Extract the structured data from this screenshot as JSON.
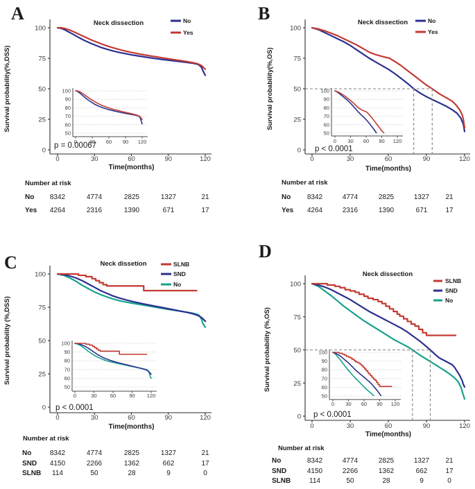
{
  "chart_data": [
    {
      "panel": "A",
      "type": "line",
      "title": "Neck dissection",
      "ylabel": "Survival probability(%,DSS)",
      "xlabel": "Time(months)",
      "p_value": "p = 0.00067",
      "xlim": [
        0,
        120
      ],
      "ylim": [
        0,
        100
      ],
      "xticks": [
        0,
        30,
        60,
        90,
        120
      ],
      "yticks": [
        0,
        25,
        50,
        75,
        100
      ],
      "legend_position": "top-right",
      "legend": [
        {
          "label": "No",
          "color": "#2b2f90"
        },
        {
          "label": "Yes",
          "color": "#c23a33"
        }
      ],
      "series": [
        {
          "name": "No",
          "color": "#2b2f90",
          "x": [
            0,
            3,
            6,
            9,
            12,
            15,
            18,
            21,
            24,
            27,
            30,
            35,
            40,
            45,
            50,
            55,
            60,
            65,
            70,
            75,
            80,
            85,
            90,
            95,
            100,
            105,
            110,
            113,
            115,
            117,
            118,
            120
          ],
          "y": [
            100,
            99.5,
            98.2,
            96.6,
            95,
            93.3,
            91.6,
            90,
            88.6,
            87.2,
            86,
            84,
            82.4,
            81,
            79.8,
            78.8,
            77.8,
            77,
            76.2,
            75.4,
            74.7,
            74,
            73.4,
            72.8,
            72.2,
            71.6,
            70.9,
            70.3,
            69.5,
            67.5,
            65,
            61
          ]
        },
        {
          "name": "Yes",
          "color": "#c23a33",
          "x": [
            0,
            3,
            6,
            9,
            12,
            15,
            18,
            21,
            24,
            27,
            30,
            35,
            40,
            45,
            50,
            55,
            60,
            65,
            70,
            75,
            80,
            85,
            90,
            95,
            100,
            105,
            110,
            113,
            115,
            117,
            118,
            120
          ],
          "y": [
            100,
            100,
            99.4,
            98.4,
            97.2,
            95.8,
            94.4,
            93,
            91.6,
            90.2,
            89,
            87,
            85.2,
            83.6,
            82.2,
            80.9,
            79.8,
            78.8,
            77.9,
            77,
            76.2,
            75.4,
            74.6,
            73.8,
            73.1,
            72.3,
            71.4,
            70.7,
            70,
            69,
            68,
            66
          ]
        }
      ],
      "inset": {
        "ylim": [
          50,
          100
        ],
        "yticks": [
          100,
          90,
          80,
          70,
          60,
          50
        ],
        "xticks": [
          0,
          30,
          60,
          90,
          120
        ],
        "grid": true
      },
      "risk_table": {
        "title": "Number at risk",
        "time_points": [
          0,
          30,
          60,
          90,
          120
        ],
        "rows": [
          {
            "label": "No",
            "values": [
              8342,
              4774,
              2825,
              1327,
              21
            ]
          },
          {
            "label": "Yes",
            "values": [
              4264,
              2316,
              1390,
              671,
              17
            ]
          }
        ]
      }
    },
    {
      "panel": "B",
      "type": "line",
      "title": "Neck dissection",
      "ylabel": "Survival probability(%,OS)",
      "xlabel": "Time(months)",
      "p_value": "p < 0.0001",
      "xlim": [
        0,
        120
      ],
      "ylim": [
        0,
        100
      ],
      "xticks": [
        0,
        30,
        60,
        90,
        120
      ],
      "yticks": [
        0,
        25,
        50,
        75,
        100
      ],
      "legend_position": "top-right",
      "median_guides": {
        "y": 50,
        "x": [
          80,
          94.5
        ]
      },
      "legend": [
        {
          "label": "No",
          "color": "#2b2f90"
        },
        {
          "label": "Yes",
          "color": "#c23a33"
        }
      ],
      "series": [
        {
          "name": "No",
          "color": "#2b2f90",
          "x": [
            0,
            5,
            10,
            15,
            20,
            25,
            30,
            35,
            40,
            45,
            50,
            55,
            60,
            65,
            70,
            75,
            80,
            85,
            90,
            95,
            100,
            105,
            110,
            114,
            117,
            119,
            120
          ],
          "y": [
            100,
            98.5,
            96,
            93.5,
            91,
            88.5,
            85.5,
            82,
            78.5,
            75,
            72,
            69,
            66,
            62.5,
            58.5,
            54.5,
            50,
            46.5,
            43.5,
            41,
            38.5,
            36,
            33,
            30,
            26,
            21,
            15
          ]
        },
        {
          "name": "Yes",
          "color": "#c23a33",
          "x": [
            0,
            5,
            10,
            15,
            20,
            25,
            30,
            35,
            40,
            45,
            50,
            55,
            61,
            65,
            70,
            75,
            80,
            85,
            90,
            94.5,
            100,
            105,
            110,
            113,
            116,
            118,
            119,
            120
          ],
          "y": [
            100,
            99,
            97.5,
            95.5,
            93.5,
            91,
            88.5,
            86,
            83,
            80,
            78,
            76.5,
            75,
            72.5,
            69,
            65,
            61,
            57,
            53,
            50,
            46,
            43,
            40,
            37,
            33,
            29,
            25,
            18
          ]
        }
      ],
      "inset": {
        "ylim": [
          50,
          100
        ],
        "yticks": [
          100,
          90,
          80,
          70,
          60,
          50
        ],
        "xticks": [
          0,
          30,
          60,
          90,
          120
        ],
        "grid": true
      },
      "risk_table": {
        "title": "Number at risk",
        "time_points": [
          0,
          30,
          60,
          90,
          120
        ],
        "rows": [
          {
            "label": "No",
            "values": [
              8342,
              4774,
              2825,
              1327,
              21
            ]
          },
          {
            "label": "Yes",
            "values": [
              4264,
              2316,
              1390,
              671,
              17
            ]
          }
        ]
      }
    },
    {
      "panel": "C",
      "type": "line",
      "title": "Neck dissetion",
      "ylabel": "Survival probability (%,DSS)",
      "xlabel": "Time(months)",
      "p_value": "p < 0.0001",
      "xlim": [
        0,
        120
      ],
      "ylim": [
        0,
        100
      ],
      "xticks": [
        0,
        30,
        60,
        90,
        120
      ],
      "yticks": [
        0,
        25,
        50,
        75,
        100
      ],
      "legend_position": "top-right",
      "legend": [
        {
          "label": "SLNB",
          "color": "#c23a33"
        },
        {
          "label": "SND",
          "color": "#2b2f90"
        },
        {
          "label": "No",
          "color": "#16a28a"
        }
      ],
      "series": [
        {
          "name": "No",
          "color": "#16a28a",
          "x": [
            0,
            5,
            10,
            15,
            20,
            25,
            30,
            35,
            40,
            45,
            50,
            55,
            60,
            65,
            70,
            75,
            80,
            85,
            90,
            95,
            100,
            105,
            110,
            113,
            115,
            117,
            118,
            120
          ],
          "y": [
            100,
            99,
            97,
            94.5,
            91.5,
            89,
            86.5,
            84.5,
            82.8,
            81.3,
            80,
            79,
            78.2,
            77.4,
            76.6,
            75.8,
            75,
            74.2,
            73.4,
            72.7,
            72,
            71.3,
            70.5,
            69.8,
            69,
            66,
            63,
            60
          ]
        },
        {
          "name": "SND",
          "color": "#2b2f90",
          "x": [
            0,
            5,
            10,
            15,
            20,
            25,
            30,
            35,
            40,
            45,
            50,
            55,
            60,
            65,
            70,
            75,
            80,
            85,
            90,
            95,
            100,
            105,
            110,
            113,
            115,
            117,
            118.5,
            120
          ],
          "y": [
            100,
            99.5,
            98.5,
            97,
            95,
            92.5,
            90,
            87.5,
            85.5,
            83.5,
            82,
            80.7,
            79.5,
            78.5,
            77.5,
            76.6,
            75.7,
            74.8,
            73.9,
            73,
            72.1,
            71.2,
            70.1,
            69.2,
            68.4,
            67.3,
            66,
            64.5
          ]
        },
        {
          "name": "SLNB",
          "color": "#c23a33",
          "step": true,
          "end": 113,
          "x": [
            0,
            17,
            23,
            28,
            31,
            34,
            37,
            40,
            70
          ],
          "y": [
            100,
            99,
            98,
            96.5,
            95,
            93.5,
            92,
            91,
            87.5
          ]
        }
      ],
      "inset": {
        "ylim": [
          50,
          100
        ],
        "yticks": [
          100,
          90,
          80,
          70,
          60,
          50
        ],
        "xticks": [
          0,
          30,
          60,
          90,
          120
        ],
        "grid": true
      },
      "risk_table": {
        "title": "Number at risk",
        "time_points": [
          0,
          30,
          60,
          90,
          120
        ],
        "rows": [
          {
            "label": "No",
            "values": [
              8342,
              4774,
              2825,
              1327,
              21
            ]
          },
          {
            "label": "SND",
            "values": [
              4150,
              2266,
              1362,
              662,
              17
            ]
          },
          {
            "label": "SLNB",
            "values": [
              114,
              50,
              28,
              9,
              0
            ]
          }
        ]
      }
    },
    {
      "panel": "D",
      "type": "line",
      "title": "Neck dissection",
      "ylabel": "Survival probability (%,OS)",
      "xlabel": "Time(months)",
      "p_value": "p < 0.0001",
      "xlim": [
        0,
        120
      ],
      "ylim": [
        0,
        100
      ],
      "xticks": [
        0,
        30,
        60,
        90,
        120
      ],
      "yticks": [
        0,
        25,
        50,
        75,
        100
      ],
      "legend_position": "top-right",
      "median_guides": {
        "y": 50,
        "x": [
          79,
          93
        ]
      },
      "legend": [
        {
          "label": "SLNB",
          "color": "#c23a33"
        },
        {
          "label": "SND",
          "color": "#2b2f90"
        },
        {
          "label": "No",
          "color": "#16a28a"
        }
      ],
      "series": [
        {
          "name": "No",
          "color": "#16a28a",
          "x": [
            0,
            5,
            10,
            15,
            20,
            25,
            30,
            35,
            40,
            45,
            50,
            55,
            60,
            65,
            70,
            75,
            79,
            85,
            90,
            95,
            100,
            105,
            108,
            112,
            115,
            117,
            118,
            120
          ],
          "y": [
            100,
            98,
            94.5,
            91,
            87,
            83,
            79.5,
            76,
            72.5,
            69.5,
            66.5,
            63.5,
            60.5,
            57.5,
            55,
            52.5,
            50,
            46,
            43,
            40,
            37,
            34,
            32,
            29,
            26,
            22,
            19,
            13
          ]
        },
        {
          "name": "SND",
          "color": "#2b2f90",
          "x": [
            0,
            5,
            10,
            15,
            20,
            25,
            30,
            35,
            40,
            45,
            50,
            55,
            60,
            65,
            70,
            75,
            80,
            85,
            90,
            93,
            97,
            100,
            104,
            108,
            110,
            112,
            114,
            116,
            118,
            119,
            120
          ],
          "y": [
            100,
            99,
            97.5,
            95.5,
            93,
            90.5,
            88,
            85,
            82,
            79,
            76.5,
            74,
            71.5,
            69,
            66.5,
            63.5,
            60,
            56.5,
            52.5,
            50,
            46.5,
            44,
            42,
            40,
            39,
            37,
            34,
            31,
            27,
            24,
            22
          ]
        },
        {
          "name": "SLNB",
          "color": "#c23a33",
          "step": true,
          "end": 113,
          "x": [
            0,
            12,
            18,
            22,
            26,
            30,
            34,
            37,
            41,
            44,
            48,
            52,
            55,
            58,
            61,
            64,
            67,
            69,
            72,
            75,
            78,
            81,
            84,
            87,
            90
          ],
          "y": [
            100,
            99,
            98,
            97,
            95.5,
            94.5,
            93.5,
            92,
            90.5,
            89,
            88,
            86.5,
            85,
            83,
            81,
            79,
            77,
            75.5,
            73.5,
            71.5,
            69.5,
            68,
            65.5,
            63,
            61
          ]
        }
      ],
      "inset": {
        "ylim": [
          50,
          100
        ],
        "yticks": [
          100,
          90,
          80,
          70,
          60,
          50
        ],
        "xticks": [
          0,
          30,
          60,
          90,
          120
        ],
        "grid": true
      },
      "risk_table": {
        "title": "Number at risk",
        "time_points": [
          0,
          30,
          60,
          90,
          120
        ],
        "rows": [
          {
            "label": "No",
            "values": [
              8342,
              4774,
              2825,
              1327,
              21
            ]
          },
          {
            "label": "SND",
            "values": [
              4150,
              2266,
              1362,
              662,
              17
            ]
          },
          {
            "label": "SLNB",
            "values": [
              114,
              50,
              28,
              9,
              0
            ]
          }
        ]
      }
    }
  ]
}
